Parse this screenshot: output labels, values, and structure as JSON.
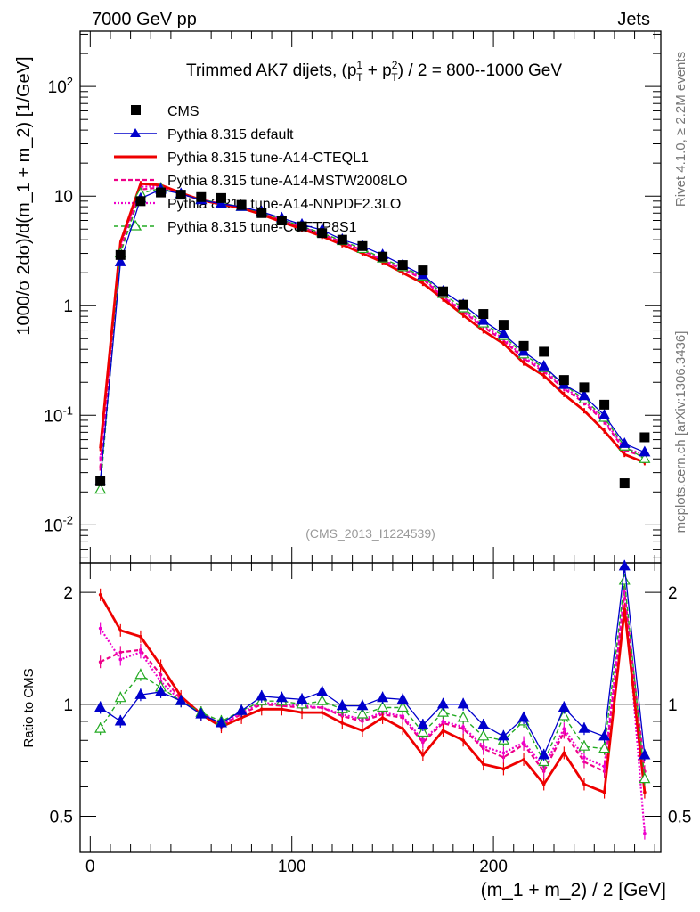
{
  "header": {
    "energy_label": "7000 GeV pp",
    "category_label": "Jets",
    "side_label_top": "Rivet 4.1.0, ≥ 2.2M events",
    "side_label_bottom": "mcplots.cern.ch [arXiv:1306.3436]",
    "analysis_id": "(CMS_2013_I1224539)"
  },
  "chart_data": [
    {
      "type": "line",
      "title": "Trimmed AK7 dijets, (p_T^1 + p_T^2) / 2 = 800--1000 GeV",
      "title_parts": {
        "prefix": "Trimmed AK7 dijets, (p",
        "sup1": "1",
        "mid": " + p",
        "sup2": "2",
        "suffix": ") / 2 = 800--1000 GeV",
        "sub": "T"
      },
      "xlabel": "(m_1 + m_2) / 2 [GeV]",
      "ylabel": "1000/σ   2dσ)/d(m_1 + m_2) [1/GeV]",
      "yscale": "log",
      "xlim": [
        -5,
        283
      ],
      "ylim": [
        0.0045,
        320
      ],
      "x_ticks": [
        "0",
        "100",
        "200"
      ],
      "y_ticks": [
        "10^-2",
        "10^-1",
        "1",
        "10",
        "10^2"
      ],
      "x": [
        5,
        15,
        25,
        35,
        45,
        55,
        65,
        75,
        85,
        95,
        105,
        115,
        125,
        135,
        145,
        155,
        165,
        175,
        185,
        195,
        205,
        215,
        225,
        235,
        245,
        255,
        265,
        275
      ],
      "data": {
        "name": "CMS",
        "color": "#000000",
        "values": [
          0.025,
          2.9,
          9.0,
          10.8,
          10.3,
          9.8,
          9.6,
          8.3,
          7.0,
          6.0,
          5.3,
          4.6,
          4.0,
          3.5,
          2.8,
          2.35,
          2.1,
          1.35,
          1.02,
          0.84,
          0.67,
          0.43,
          0.38,
          0.21,
          0.18,
          0.125,
          0.024,
          0.063
        ]
      },
      "series": [
        {
          "name": "Pythia 8.315 default",
          "color": "#0000cc",
          "style": "solid",
          "marker": "filled-triangle",
          "values": [
            0.025,
            2.5,
            9.5,
            11.5,
            10.5,
            9.2,
            8.5,
            8.0,
            7.2,
            6.3,
            5.5,
            4.9,
            4.0,
            3.5,
            2.9,
            2.35,
            1.9,
            1.35,
            1.02,
            0.73,
            0.55,
            0.38,
            0.28,
            0.19,
            0.15,
            0.1,
            0.055,
            0.046
          ]
        },
        {
          "name": "Pythia 8.315 tune-A14-CTEQL1",
          "color": "#ee0000",
          "style": "solid",
          "marker": "none",
          "values": [
            0.05,
            3.8,
            13.0,
            12.6,
            10.7,
            9.2,
            8.4,
            7.8,
            6.8,
            5.8,
            5.0,
            4.3,
            3.6,
            3.0,
            2.5,
            2.0,
            1.6,
            1.15,
            0.82,
            0.59,
            0.45,
            0.3,
            0.23,
            0.155,
            0.11,
            0.072,
            0.044,
            0.037
          ]
        },
        {
          "name": "Pythia 8.315 tune-A14-MSTW2008LO",
          "color": "#ee0088",
          "style": "dashed",
          "marker": "none",
          "values": [
            0.033,
            3.3,
            11.5,
            12.0,
            10.5,
            9.3,
            8.5,
            7.9,
            7.0,
            6.0,
            5.2,
            4.5,
            3.8,
            3.2,
            2.6,
            2.15,
            1.75,
            1.2,
            0.88,
            0.64,
            0.48,
            0.33,
            0.25,
            0.175,
            0.13,
            0.087,
            0.048,
            0.042
          ]
        },
        {
          "name": "Pythia 8.315 tune-A14-NNPDF2.3LO",
          "color": "#ee00cc",
          "style": "dotted",
          "marker": "none",
          "values": [
            0.04,
            3.6,
            12.2,
            12.3,
            10.6,
            9.3,
            8.5,
            7.9,
            7.0,
            6.0,
            5.2,
            4.5,
            3.8,
            3.2,
            2.6,
            2.2,
            1.78,
            1.22,
            0.9,
            0.66,
            0.5,
            0.34,
            0.26,
            0.18,
            0.135,
            0.09,
            0.05,
            0.044
          ]
        },
        {
          "name": "Pythia 8.315 tune-CUETP8S1",
          "color": "#22aa22",
          "style": "dashed",
          "marker": "open-triangle",
          "values": [
            0.021,
            3.0,
            10.6,
            11.8,
            10.4,
            9.3,
            8.6,
            8.0,
            7.1,
            6.1,
            5.3,
            4.6,
            3.9,
            3.3,
            2.7,
            2.25,
            1.85,
            1.28,
            0.95,
            0.69,
            0.53,
            0.36,
            0.27,
            0.19,
            0.14,
            0.095,
            0.052,
            0.04
          ]
        }
      ]
    },
    {
      "type": "line",
      "title": "Ratio to CMS",
      "xlabel": "(m_1 + m_2) / 2 [GeV]",
      "ylabel": "Ratio to CMS",
      "yscale": "log",
      "xlim": [
        -5,
        283
      ],
      "ylim": [
        0.4,
        2.4
      ],
      "y_ticks": [
        "0.5",
        "1",
        "2"
      ],
      "reference_line": 1,
      "x": [
        5,
        15,
        25,
        35,
        45,
        55,
        65,
        75,
        85,
        95,
        105,
        115,
        125,
        135,
        145,
        155,
        165,
        175,
        185,
        195,
        205,
        215,
        225,
        235,
        245,
        255,
        265,
        275
      ],
      "series": [
        {
          "name": "Pythia 8.315 default",
          "color": "#0000cc",
          "values": [
            0.98,
            0.9,
            1.06,
            1.08,
            1.02,
            0.94,
            0.89,
            0.96,
            1.05,
            1.04,
            1.03,
            1.08,
            0.99,
            0.99,
            1.04,
            1.03,
            0.88,
            1.0,
            1.0,
            0.88,
            0.82,
            0.92,
            0.73,
            0.98,
            0.86,
            0.82,
            2.35,
            0.73
          ]
        },
        {
          "name": "Pythia 8.315 tune-A14-CTEQL1",
          "color": "#ee0000",
          "values": [
            1.97,
            1.58,
            1.52,
            1.27,
            1.05,
            0.94,
            0.87,
            0.92,
            0.97,
            0.97,
            0.95,
            0.95,
            0.89,
            0.85,
            0.92,
            0.86,
            0.73,
            0.85,
            0.8,
            0.69,
            0.67,
            0.71,
            0.61,
            0.74,
            0.61,
            0.58,
            1.8,
            0.58
          ]
        },
        {
          "name": "Pythia 8.315 tune-A14-MSTW2008LO",
          "color": "#ee0088",
          "values": [
            1.3,
            1.38,
            1.4,
            1.2,
            1.03,
            0.95,
            0.88,
            0.94,
            1.0,
            0.99,
            0.98,
            0.98,
            0.93,
            0.9,
            0.94,
            0.92,
            0.79,
            0.89,
            0.86,
            0.76,
            0.72,
            0.78,
            0.66,
            0.84,
            0.7,
            0.66,
            2.0,
            0.66
          ]
        },
        {
          "name": "Pythia 8.315 tune-A14-NNPDF2.3LO",
          "color": "#ee00cc",
          "values": [
            1.6,
            1.32,
            1.38,
            1.15,
            1.02,
            0.95,
            0.88,
            0.95,
            1.01,
            1.0,
            0.99,
            0.98,
            0.94,
            0.91,
            0.95,
            0.93,
            0.8,
            0.9,
            0.87,
            0.77,
            0.74,
            0.79,
            0.68,
            0.86,
            0.72,
            0.68,
            2.05,
            0.45
          ]
        },
        {
          "name": "Pythia 8.315 tune-CUETP8S1",
          "color": "#22aa22",
          "values": [
            0.86,
            1.04,
            1.2,
            1.11,
            1.02,
            0.95,
            0.9,
            0.96,
            1.02,
            1.02,
            1.0,
            1.02,
            0.97,
            0.94,
            0.98,
            0.98,
            0.84,
            0.95,
            0.92,
            0.82,
            0.8,
            0.9,
            0.7,
            0.93,
            0.77,
            0.76,
            2.15,
            0.63
          ]
        }
      ]
    }
  ]
}
